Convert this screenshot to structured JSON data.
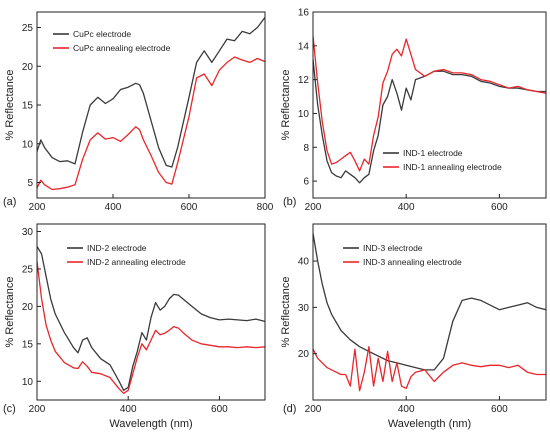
{
  "chart_data": [
    {
      "type": "line",
      "panel_label": "(a)",
      "xlabel": "",
      "ylabel": "% Reflectance",
      "xlim": [
        200,
        800
      ],
      "ylim": [
        3,
        27
      ],
      "xticks": [
        "200",
        "400",
        "600",
        "800"
      ],
      "xtick_values": [
        200,
        400,
        600,
        800
      ],
      "yticks": [
        "5",
        "10",
        "15",
        "20",
        "25"
      ],
      "ytick_values": [
        5,
        10,
        15,
        20,
        25
      ],
      "legend_position": "top-left",
      "series": [
        {
          "name": "CuPc electrode",
          "color": "#3a3a3a",
          "x": [
            200,
            210,
            220,
            240,
            260,
            280,
            300,
            320,
            340,
            360,
            380,
            400,
            420,
            440,
            460,
            470,
            480,
            500,
            520,
            540,
            555,
            570,
            600,
            620,
            640,
            660,
            680,
            700,
            720,
            740,
            760,
            780,
            800
          ],
          "y": [
            9,
            10.5,
            9.5,
            8.2,
            7.7,
            7.8,
            7.4,
            11.5,
            15,
            16,
            15.2,
            15.8,
            17,
            17.3,
            17.8,
            17.6,
            16.5,
            13,
            9.5,
            7.2,
            7.0,
            9.5,
            16,
            20.5,
            22,
            20.5,
            22,
            23.5,
            23.3,
            24.5,
            24.2,
            25,
            26.3
          ]
        },
        {
          "name": "CuPc annealing electrode",
          "color": "#e8262b",
          "x": [
            200,
            210,
            220,
            240,
            260,
            280,
            300,
            320,
            340,
            360,
            380,
            400,
            420,
            440,
            460,
            470,
            480,
            500,
            520,
            540,
            555,
            570,
            600,
            620,
            640,
            660,
            680,
            700,
            720,
            740,
            760,
            780,
            800
          ],
          "y": [
            4.3,
            5.3,
            4.7,
            4.1,
            4.2,
            4.4,
            4.7,
            8,
            10.5,
            11.4,
            10.6,
            10.8,
            10.3,
            11.2,
            12.2,
            11.8,
            10.5,
            8.5,
            6.3,
            5.0,
            4.8,
            7.5,
            13.5,
            18.5,
            19,
            17.5,
            19.5,
            20.5,
            21.2,
            20.8,
            20.5,
            21,
            20.6
          ]
        }
      ]
    },
    {
      "type": "line",
      "panel_label": "(b)",
      "xlabel": "",
      "ylabel": "% Reflectance",
      "xlim": [
        200,
        700
      ],
      "ylim": [
        5,
        16
      ],
      "xticks": [
        "200",
        "400",
        "600"
      ],
      "xtick_values": [
        200,
        400,
        600
      ],
      "yticks": [
        "6",
        "8",
        "10",
        "12",
        "14",
        "16"
      ],
      "ytick_values": [
        6,
        8,
        10,
        12,
        14,
        16
      ],
      "legend_position": "bottom-right",
      "series": [
        {
          "name": "IND-1 electrode",
          "color": "#3a3a3a",
          "x": [
            200,
            210,
            220,
            230,
            240,
            250,
            260,
            270,
            280,
            290,
            300,
            310,
            320,
            330,
            340,
            350,
            360,
            370,
            380,
            390,
            400,
            410,
            420,
            440,
            460,
            480,
            500,
            520,
            540,
            560,
            580,
            600,
            620,
            640,
            660,
            680,
            700
          ],
          "y": [
            13.2,
            10.5,
            8.7,
            7.2,
            6.5,
            6.3,
            6.2,
            6.6,
            6.4,
            6.2,
            5.9,
            6.2,
            6.4,
            7.8,
            8.7,
            10.5,
            11.0,
            12.0,
            11.2,
            10.2,
            11.5,
            10.8,
            12.0,
            12.2,
            12.5,
            12.5,
            12.3,
            12.3,
            12.2,
            11.9,
            11.8,
            11.6,
            11.5,
            11.5,
            11.4,
            11.3,
            11.3
          ]
        },
        {
          "name": "IND-1 annealing electrode",
          "color": "#e8262b",
          "x": [
            200,
            210,
            220,
            230,
            240,
            250,
            260,
            270,
            280,
            290,
            300,
            310,
            320,
            330,
            340,
            350,
            360,
            370,
            380,
            390,
            400,
            410,
            420,
            440,
            460,
            480,
            500,
            520,
            540,
            560,
            580,
            600,
            620,
            640,
            660,
            680,
            700
          ],
          "y": [
            14.6,
            11.8,
            9.5,
            7.8,
            7.0,
            7.1,
            7.3,
            7.5,
            7.7,
            7.2,
            6.6,
            7.3,
            7.0,
            8.7,
            9.8,
            11.8,
            12.5,
            13.5,
            13.8,
            13.4,
            14.4,
            13.5,
            12.6,
            12.2,
            12.5,
            12.6,
            12.4,
            12.4,
            12.3,
            12.0,
            11.9,
            11.7,
            11.5,
            11.6,
            11.4,
            11.3,
            11.2
          ]
        }
      ]
    },
    {
      "type": "line",
      "panel_label": "(c)",
      "xlabel": "Wavelength (nm)",
      "ylabel": "% Reflectance",
      "xlim": [
        200,
        700
      ],
      "ylim": [
        7.5,
        31
      ],
      "xticks": [
        "200",
        "400",
        "600"
      ],
      "xtick_values": [
        200,
        400,
        600
      ],
      "yticks": [
        "10",
        "15",
        "20",
        "25",
        "30"
      ],
      "ytick_values": [
        10,
        15,
        20,
        25,
        30
      ],
      "legend_position": "top-right",
      "series": [
        {
          "name": "IND-2 electrode",
          "color": "#3a3a3a",
          "x": [
            200,
            210,
            220,
            230,
            240,
            260,
            280,
            290,
            300,
            310,
            320,
            340,
            360,
            380,
            390,
            400,
            410,
            420,
            430,
            440,
            450,
            460,
            470,
            480,
            490,
            500,
            510,
            520,
            540,
            560,
            580,
            600,
            620,
            640,
            660,
            680,
            700
          ],
          "y": [
            28,
            27,
            24,
            21,
            19,
            16.5,
            14.5,
            13.8,
            15.5,
            15.8,
            14.5,
            13,
            12.2,
            10,
            8.8,
            9.2,
            12,
            14,
            16.5,
            15.5,
            18.5,
            20.5,
            19.5,
            20,
            21,
            21.6,
            21.5,
            21,
            20,
            19,
            18.5,
            18.2,
            18.3,
            18.2,
            18.1,
            18.3,
            18.0
          ]
        },
        {
          "name": "IND-2 annealing electrode",
          "color": "#e8262b",
          "x": [
            200,
            210,
            220,
            230,
            240,
            260,
            280,
            290,
            300,
            310,
            320,
            340,
            360,
            380,
            390,
            400,
            410,
            420,
            430,
            440,
            450,
            460,
            470,
            480,
            490,
            500,
            510,
            520,
            540,
            560,
            580,
            600,
            620,
            640,
            660,
            680,
            700
          ],
          "y": [
            26,
            21,
            17.5,
            15.5,
            14,
            12.5,
            11.8,
            11.7,
            12.6,
            12.0,
            11.2,
            11,
            10.5,
            9,
            8.4,
            8.8,
            11,
            13.2,
            15,
            14.2,
            15.5,
            16.8,
            16.2,
            16.4,
            16.8,
            17.3,
            17.1,
            16.5,
            15.5,
            15,
            14.8,
            14.6,
            14.6,
            14.5,
            14.6,
            14.5,
            14.6
          ]
        }
      ]
    },
    {
      "type": "line",
      "panel_label": "(d)",
      "xlabel": "Wavelength (nm)",
      "ylabel": "% Reflectance",
      "xlim": [
        200,
        700
      ],
      "ylim": [
        10,
        48
      ],
      "xticks": [
        "200",
        "400",
        "600"
      ],
      "xtick_values": [
        200,
        400,
        600
      ],
      "yticks": [
        "20",
        "30",
        "40"
      ],
      "ytick_values": [
        20,
        30,
        40
      ],
      "legend_position": "top-right",
      "series": [
        {
          "name": "IND-3 electrode",
          "color": "#3a3a3a",
          "x": [
            200,
            210,
            220,
            230,
            240,
            260,
            280,
            300,
            320,
            340,
            360,
            380,
            400,
            420,
            440,
            460,
            480,
            500,
            520,
            540,
            560,
            580,
            600,
            620,
            640,
            660,
            680,
            700
          ],
          "y": [
            46,
            40,
            35,
            31,
            28.5,
            25,
            23,
            21.5,
            20.5,
            19.5,
            18.5,
            18,
            17.5,
            17,
            16.5,
            16.5,
            19,
            27,
            31.5,
            32,
            31.5,
            30.5,
            29.5,
            30,
            30.5,
            31,
            30,
            29.5
          ]
        },
        {
          "name": "IND-3 annealing electrode",
          "color": "#e8262b",
          "x": [
            200,
            210,
            220,
            230,
            240,
            250,
            260,
            270,
            280,
            290,
            300,
            310,
            320,
            330,
            340,
            350,
            360,
            370,
            380,
            390,
            400,
            410,
            420,
            440,
            460,
            480,
            500,
            520,
            540,
            560,
            580,
            600,
            620,
            640,
            660,
            680,
            700
          ],
          "y": [
            21,
            19,
            18,
            17,
            16.5,
            16,
            15.5,
            15.5,
            13,
            21,
            12,
            16,
            21.5,
            13,
            19,
            14,
            20.5,
            14,
            18,
            13,
            12.5,
            15,
            16,
            16.5,
            14,
            16,
            17.5,
            18,
            17.5,
            17.2,
            17.5,
            17.5,
            17,
            17.5,
            16,
            15.5,
            15.5
          ]
        }
      ]
    }
  ]
}
